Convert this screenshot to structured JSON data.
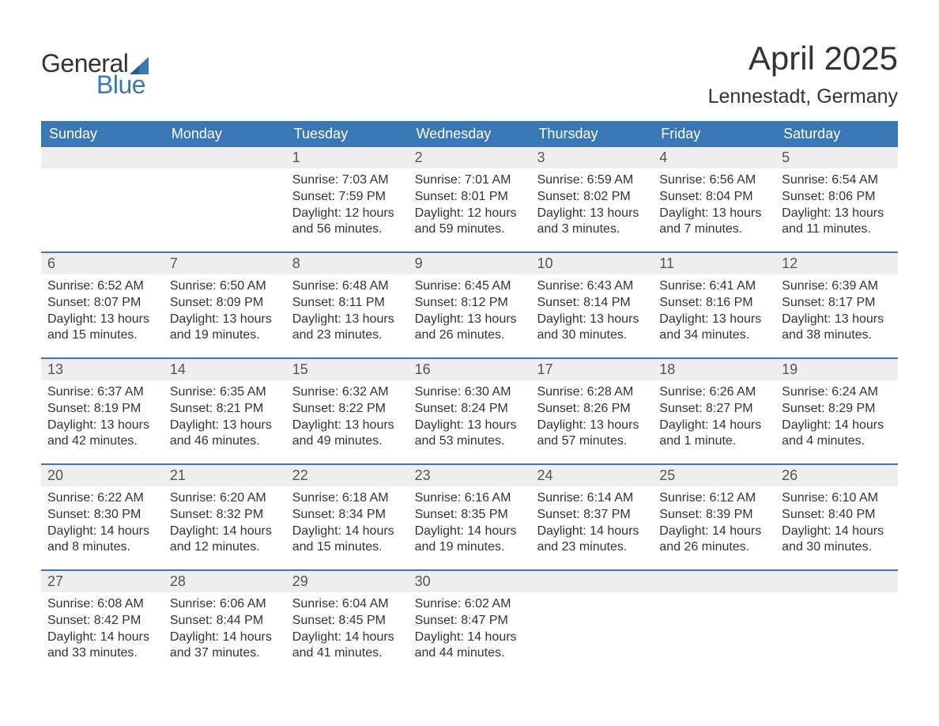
{
  "brand": {
    "text_general": "General",
    "text_blue": "Blue",
    "sail_color": "#3a78b5",
    "general_color": "#333333",
    "blue_color": "#3a78b5"
  },
  "title": {
    "month_year": "April 2025",
    "location": "Lennestadt, Germany"
  },
  "colors": {
    "header_bg": "#3a78b5",
    "header_text": "#ffffff",
    "daynum_bg": "#eeeeee",
    "daynum_text": "#555555",
    "body_text": "#333333",
    "week_border": "#3a78b5",
    "page_bg": "#ffffff"
  },
  "typography": {
    "month_year_fontsize": 42,
    "location_fontsize": 25,
    "day_header_fontsize": 18,
    "daynum_fontsize": 18,
    "body_fontsize": 16
  },
  "day_headers": [
    "Sunday",
    "Monday",
    "Tuesday",
    "Wednesday",
    "Thursday",
    "Friday",
    "Saturday"
  ],
  "weeks": [
    [
      {
        "num": "",
        "sunrise": "",
        "sunset": "",
        "daylight": ""
      },
      {
        "num": "",
        "sunrise": "",
        "sunset": "",
        "daylight": ""
      },
      {
        "num": "1",
        "sunrise": "Sunrise: 7:03 AM",
        "sunset": "Sunset: 7:59 PM",
        "daylight": "Daylight: 12 hours and 56 minutes."
      },
      {
        "num": "2",
        "sunrise": "Sunrise: 7:01 AM",
        "sunset": "Sunset: 8:01 PM",
        "daylight": "Daylight: 12 hours and 59 minutes."
      },
      {
        "num": "3",
        "sunrise": "Sunrise: 6:59 AM",
        "sunset": "Sunset: 8:02 PM",
        "daylight": "Daylight: 13 hours and 3 minutes."
      },
      {
        "num": "4",
        "sunrise": "Sunrise: 6:56 AM",
        "sunset": "Sunset: 8:04 PM",
        "daylight": "Daylight: 13 hours and 7 minutes."
      },
      {
        "num": "5",
        "sunrise": "Sunrise: 6:54 AM",
        "sunset": "Sunset: 8:06 PM",
        "daylight": "Daylight: 13 hours and 11 minutes."
      }
    ],
    [
      {
        "num": "6",
        "sunrise": "Sunrise: 6:52 AM",
        "sunset": "Sunset: 8:07 PM",
        "daylight": "Daylight: 13 hours and 15 minutes."
      },
      {
        "num": "7",
        "sunrise": "Sunrise: 6:50 AM",
        "sunset": "Sunset: 8:09 PM",
        "daylight": "Daylight: 13 hours and 19 minutes."
      },
      {
        "num": "8",
        "sunrise": "Sunrise: 6:48 AM",
        "sunset": "Sunset: 8:11 PM",
        "daylight": "Daylight: 13 hours and 23 minutes."
      },
      {
        "num": "9",
        "sunrise": "Sunrise: 6:45 AM",
        "sunset": "Sunset: 8:12 PM",
        "daylight": "Daylight: 13 hours and 26 minutes."
      },
      {
        "num": "10",
        "sunrise": "Sunrise: 6:43 AM",
        "sunset": "Sunset: 8:14 PM",
        "daylight": "Daylight: 13 hours and 30 minutes."
      },
      {
        "num": "11",
        "sunrise": "Sunrise: 6:41 AM",
        "sunset": "Sunset: 8:16 PM",
        "daylight": "Daylight: 13 hours and 34 minutes."
      },
      {
        "num": "12",
        "sunrise": "Sunrise: 6:39 AM",
        "sunset": "Sunset: 8:17 PM",
        "daylight": "Daylight: 13 hours and 38 minutes."
      }
    ],
    [
      {
        "num": "13",
        "sunrise": "Sunrise: 6:37 AM",
        "sunset": "Sunset: 8:19 PM",
        "daylight": "Daylight: 13 hours and 42 minutes."
      },
      {
        "num": "14",
        "sunrise": "Sunrise: 6:35 AM",
        "sunset": "Sunset: 8:21 PM",
        "daylight": "Daylight: 13 hours and 46 minutes."
      },
      {
        "num": "15",
        "sunrise": "Sunrise: 6:32 AM",
        "sunset": "Sunset: 8:22 PM",
        "daylight": "Daylight: 13 hours and 49 minutes."
      },
      {
        "num": "16",
        "sunrise": "Sunrise: 6:30 AM",
        "sunset": "Sunset: 8:24 PM",
        "daylight": "Daylight: 13 hours and 53 minutes."
      },
      {
        "num": "17",
        "sunrise": "Sunrise: 6:28 AM",
        "sunset": "Sunset: 8:26 PM",
        "daylight": "Daylight: 13 hours and 57 minutes."
      },
      {
        "num": "18",
        "sunrise": "Sunrise: 6:26 AM",
        "sunset": "Sunset: 8:27 PM",
        "daylight": "Daylight: 14 hours and 1 minute."
      },
      {
        "num": "19",
        "sunrise": "Sunrise: 6:24 AM",
        "sunset": "Sunset: 8:29 PM",
        "daylight": "Daylight: 14 hours and 4 minutes."
      }
    ],
    [
      {
        "num": "20",
        "sunrise": "Sunrise: 6:22 AM",
        "sunset": "Sunset: 8:30 PM",
        "daylight": "Daylight: 14 hours and 8 minutes."
      },
      {
        "num": "21",
        "sunrise": "Sunrise: 6:20 AM",
        "sunset": "Sunset: 8:32 PM",
        "daylight": "Daylight: 14 hours and 12 minutes."
      },
      {
        "num": "22",
        "sunrise": "Sunrise: 6:18 AM",
        "sunset": "Sunset: 8:34 PM",
        "daylight": "Daylight: 14 hours and 15 minutes."
      },
      {
        "num": "23",
        "sunrise": "Sunrise: 6:16 AM",
        "sunset": "Sunset: 8:35 PM",
        "daylight": "Daylight: 14 hours and 19 minutes."
      },
      {
        "num": "24",
        "sunrise": "Sunrise: 6:14 AM",
        "sunset": "Sunset: 8:37 PM",
        "daylight": "Daylight: 14 hours and 23 minutes."
      },
      {
        "num": "25",
        "sunrise": "Sunrise: 6:12 AM",
        "sunset": "Sunset: 8:39 PM",
        "daylight": "Daylight: 14 hours and 26 minutes."
      },
      {
        "num": "26",
        "sunrise": "Sunrise: 6:10 AM",
        "sunset": "Sunset: 8:40 PM",
        "daylight": "Daylight: 14 hours and 30 minutes."
      }
    ],
    [
      {
        "num": "27",
        "sunrise": "Sunrise: 6:08 AM",
        "sunset": "Sunset: 8:42 PM",
        "daylight": "Daylight: 14 hours and 33 minutes."
      },
      {
        "num": "28",
        "sunrise": "Sunrise: 6:06 AM",
        "sunset": "Sunset: 8:44 PM",
        "daylight": "Daylight: 14 hours and 37 minutes."
      },
      {
        "num": "29",
        "sunrise": "Sunrise: 6:04 AM",
        "sunset": "Sunset: 8:45 PM",
        "daylight": "Daylight: 14 hours and 41 minutes."
      },
      {
        "num": "30",
        "sunrise": "Sunrise: 6:02 AM",
        "sunset": "Sunset: 8:47 PM",
        "daylight": "Daylight: 14 hours and 44 minutes."
      },
      {
        "num": "",
        "sunrise": "",
        "sunset": "",
        "daylight": ""
      },
      {
        "num": "",
        "sunrise": "",
        "sunset": "",
        "daylight": ""
      },
      {
        "num": "",
        "sunrise": "",
        "sunset": "",
        "daylight": ""
      }
    ]
  ]
}
